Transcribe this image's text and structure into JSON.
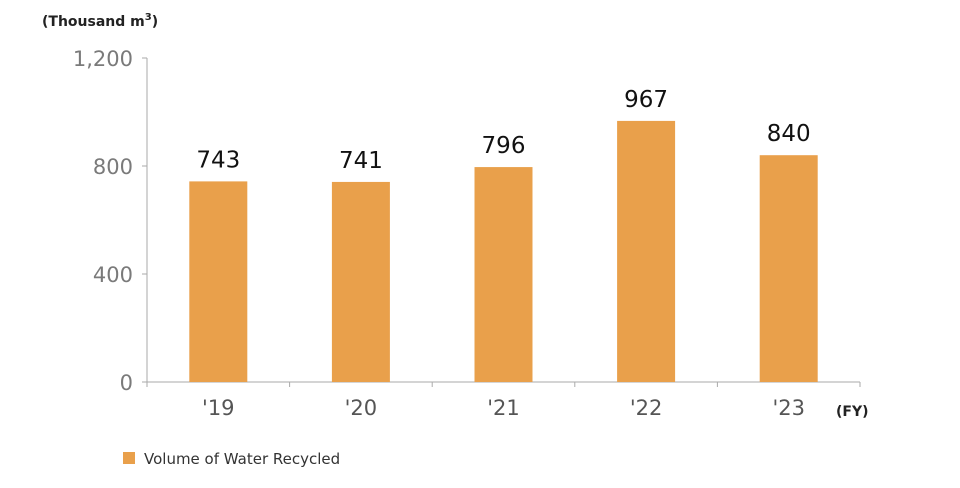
{
  "chart_data": {
    "type": "bar",
    "unit_label": "(Thousand m",
    "unit_superscript": "3",
    "unit_close": ")",
    "x_unit": "(FY)",
    "categories": [
      "'19",
      "'20",
      "'21",
      "'22",
      "'23"
    ],
    "series": [
      {
        "name": "Volume of Water Recycled",
        "values": [
          743,
          741,
          796,
          967,
          840
        ]
      }
    ],
    "ylim": [
      0,
      1200
    ],
    "yticks": [
      0,
      400,
      800,
      1200
    ],
    "ytick_labels": [
      "0",
      "400",
      "800",
      "1,200"
    ],
    "grid": false,
    "legend_position": "bottom-left",
    "bar_color": "#E9A04B",
    "axis_color": "#aaaaaa"
  }
}
